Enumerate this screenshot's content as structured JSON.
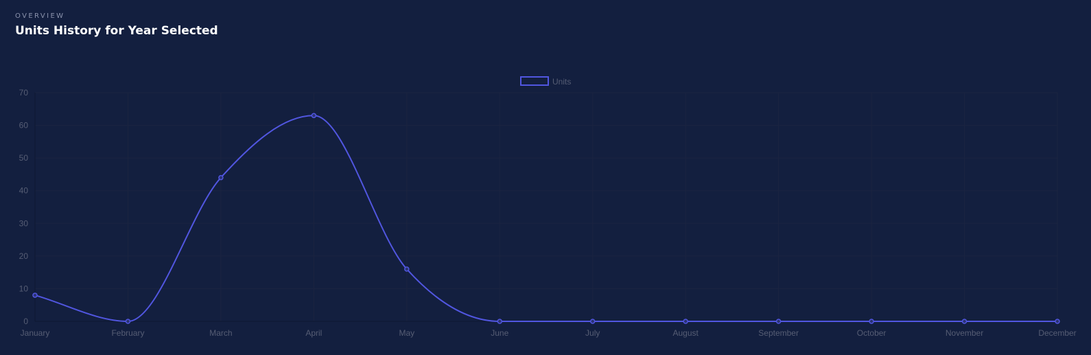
{
  "header": {
    "eyebrow": "OVERVIEW",
    "title": "Units History for Year Selected"
  },
  "colors": {
    "background": "#131f3f",
    "line": "#5156e0",
    "grid": "#1b2440",
    "tick_text": "#565d74"
  },
  "chart_data": {
    "type": "line",
    "categories": [
      "January",
      "February",
      "March",
      "April",
      "May",
      "June",
      "July",
      "August",
      "September",
      "October",
      "November",
      "December"
    ],
    "series": [
      {
        "name": "Units",
        "values": [
          8,
          0,
          44,
          63,
          16,
          0,
          0,
          0,
          0,
          0,
          0,
          0
        ]
      }
    ],
    "ylim": [
      0,
      70
    ],
    "yticks": [
      0,
      10,
      20,
      30,
      40,
      50,
      60,
      70
    ],
    "legend": "top-center",
    "grid": true,
    "smooth": true
  }
}
